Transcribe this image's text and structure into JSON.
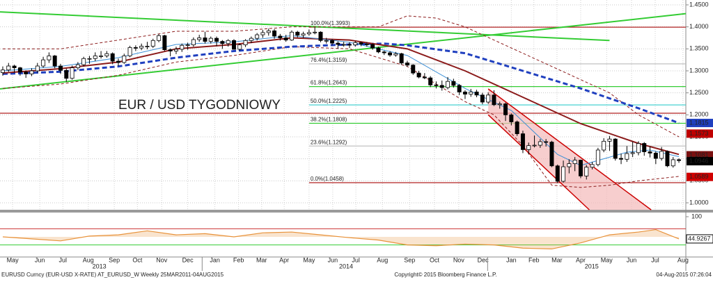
{
  "chart_data": {
    "type": "candlestick",
    "title": "EUR / USD TYGODNIOWY",
    "title_color": "#c00000",
    "xlim": [
      -0.48,
      118.2
    ],
    "ylim": [
      1.0,
      1.45
    ],
    "grid": true,
    "up_color": "#ffffff",
    "down_color": "#000000",
    "yticks": [
      {
        "value": 1.0,
        "label": "1.0000"
      },
      {
        "value": 1.05,
        "label": "1.0500"
      },
      {
        "value": 1.1,
        "label": "1.1000"
      },
      {
        "value": 1.15,
        "label": "1.1500"
      },
      {
        "value": 1.2,
        "label": "1.2000"
      },
      {
        "value": 1.25,
        "label": "1.2500"
      },
      {
        "value": 1.3,
        "label": "1.3000"
      },
      {
        "value": 1.35,
        "label": "1.3500"
      },
      {
        "value": 1.4,
        "label": "1.4000"
      },
      {
        "value": 1.45,
        "label": "1.4500"
      }
    ],
    "xticks": [
      {
        "value": 1.7,
        "label": "May"
      },
      {
        "value": 6.4,
        "label": "Jun"
      },
      {
        "value": 10.4,
        "label": "Jul"
      },
      {
        "value": 14.8,
        "label": "Aug"
      },
      {
        "value": 19.3,
        "label": "Sep"
      },
      {
        "value": 23.3,
        "label": "Oct"
      },
      {
        "value": 27.5,
        "label": "Nov"
      },
      {
        "value": 32,
        "label": "Dec"
      },
      {
        "value": 36.7,
        "label": "Jan"
      },
      {
        "value": 40.8,
        "label": "Feb"
      },
      {
        "value": 44.8,
        "label": "Mar"
      },
      {
        "value": 48.7,
        "label": "Apr"
      },
      {
        "value": 53,
        "label": "May"
      },
      {
        "value": 57.1,
        "label": "Jun"
      },
      {
        "value": 61.1,
        "label": "Jul"
      },
      {
        "value": 65.7,
        "label": "Aug"
      },
      {
        "value": 70.4,
        "label": "Sep"
      },
      {
        "value": 74.7,
        "label": "Oct"
      },
      {
        "value": 78.9,
        "label": "Nov"
      },
      {
        "value": 83.1,
        "label": "Dec"
      },
      {
        "value": 88,
        "label": "Jan"
      },
      {
        "value": 91.9,
        "label": "Feb"
      },
      {
        "value": 95.9,
        "label": "Mar"
      },
      {
        "value": 100,
        "label": "Apr"
      },
      {
        "value": 104.5,
        "label": "May"
      },
      {
        "value": 108.8,
        "label": "Jun"
      },
      {
        "value": 112.9,
        "label": "Jul"
      },
      {
        "value": 117.7,
        "label": "Aug"
      }
    ],
    "year_ticks": [
      {
        "value": 16.7,
        "label": "2013"
      },
      {
        "value": 59.4,
        "label": "2014"
      },
      {
        "value": 101.9,
        "label": "2015"
      }
    ],
    "year_separators": [
      34.5,
      83.9
    ],
    "ohlc": [
      [
        1.296,
        1.31,
        1.289,
        1.302
      ],
      [
        1.302,
        1.318,
        1.298,
        1.311
      ],
      [
        1.311,
        1.314,
        1.296,
        1.307
      ],
      [
        1.307,
        1.309,
        1.289,
        1.297
      ],
      [
        1.297,
        1.301,
        1.284,
        1.293
      ],
      [
        1.293,
        1.306,
        1.288,
        1.3
      ],
      [
        1.3,
        1.318,
        1.296,
        1.311
      ],
      [
        1.311,
        1.332,
        1.307,
        1.325
      ],
      [
        1.325,
        1.342,
        1.318,
        1.334
      ],
      [
        1.334,
        1.336,
        1.306,
        1.311
      ],
      [
        1.311,
        1.316,
        1.293,
        1.301
      ],
      [
        1.301,
        1.305,
        1.275,
        1.283
      ],
      [
        1.283,
        1.312,
        1.28,
        1.307
      ],
      [
        1.307,
        1.32,
        1.302,
        1.314
      ],
      [
        1.314,
        1.332,
        1.31,
        1.328
      ],
      [
        1.328,
        1.334,
        1.316,
        1.328
      ],
      [
        1.328,
        1.342,
        1.322,
        1.334
      ],
      [
        1.334,
        1.345,
        1.328,
        1.334
      ],
      [
        1.334,
        1.345,
        1.33,
        1.339
      ],
      [
        1.339,
        1.342,
        1.315,
        1.322
      ],
      [
        1.322,
        1.328,
        1.311,
        1.319
      ],
      [
        1.319,
        1.339,
        1.316,
        1.334
      ],
      [
        1.334,
        1.357,
        1.331,
        1.353
      ],
      [
        1.353,
        1.358,
        1.345,
        1.352
      ],
      [
        1.352,
        1.362,
        1.347,
        1.356
      ],
      [
        1.356,
        1.366,
        1.349,
        1.356
      ],
      [
        1.356,
        1.373,
        1.352,
        1.369
      ],
      [
        1.369,
        1.384,
        1.365,
        1.38
      ],
      [
        1.38,
        1.382,
        1.345,
        1.348
      ],
      [
        1.348,
        1.351,
        1.333,
        1.345
      ],
      [
        1.345,
        1.355,
        1.338,
        1.349
      ],
      [
        1.349,
        1.362,
        1.343,
        1.358
      ],
      [
        1.358,
        1.364,
        1.348,
        1.359
      ],
      [
        1.359,
        1.376,
        1.355,
        1.371
      ],
      [
        1.371,
        1.382,
        1.366,
        1.375
      ],
      [
        1.375,
        1.389,
        1.362,
        1.367
      ],
      [
        1.367,
        1.378,
        1.362,
        1.374
      ],
      [
        1.374,
        1.378,
        1.356,
        1.367
      ],
      [
        1.367,
        1.37,
        1.35,
        1.362
      ],
      [
        1.362,
        1.372,
        1.355,
        1.369
      ],
      [
        1.369,
        1.372,
        1.348,
        1.349
      ],
      [
        1.349,
        1.362,
        1.346,
        1.359
      ],
      [
        1.359,
        1.372,
        1.354,
        1.369
      ],
      [
        1.369,
        1.378,
        1.363,
        1.374
      ],
      [
        1.374,
        1.386,
        1.369,
        1.382
      ],
      [
        1.382,
        1.393,
        1.375,
        1.387
      ],
      [
        1.387,
        1.396,
        1.38,
        1.391
      ],
      [
        1.391,
        1.395,
        1.373,
        1.379
      ],
      [
        1.379,
        1.384,
        1.369,
        1.375
      ],
      [
        1.375,
        1.382,
        1.366,
        1.37
      ],
      [
        1.37,
        1.392,
        1.368,
        1.388
      ],
      [
        1.388,
        1.391,
        1.376,
        1.381
      ],
      [
        1.381,
        1.389,
        1.375,
        1.384
      ],
      [
        1.384,
        1.394,
        1.38,
        1.387
      ],
      [
        1.387,
        1.399,
        1.383,
        1.388
      ],
      [
        1.388,
        1.39,
        1.365,
        1.369
      ],
      [
        1.369,
        1.375,
        1.362,
        1.369
      ],
      [
        1.369,
        1.372,
        1.358,
        1.363
      ],
      [
        1.363,
        1.367,
        1.35,
        1.36
      ],
      [
        1.36,
        1.366,
        1.355,
        1.36
      ],
      [
        1.36,
        1.365,
        1.352,
        1.359
      ],
      [
        1.359,
        1.368,
        1.355,
        1.364
      ],
      [
        1.364,
        1.366,
        1.356,
        1.361
      ],
      [
        1.361,
        1.365,
        1.355,
        1.36
      ],
      [
        1.36,
        1.362,
        1.348,
        1.352
      ],
      [
        1.352,
        1.355,
        1.34,
        1.343
      ],
      [
        1.343,
        1.346,
        1.336,
        1.341
      ],
      [
        1.341,
        1.345,
        1.332,
        1.336
      ],
      [
        1.336,
        1.343,
        1.332,
        1.339
      ],
      [
        1.339,
        1.341,
        1.314,
        1.318
      ],
      [
        1.318,
        1.323,
        1.309,
        1.313
      ],
      [
        1.313,
        1.315,
        1.291,
        1.295
      ],
      [
        1.295,
        1.3,
        1.283,
        1.286
      ],
      [
        1.286,
        1.295,
        1.281,
        1.284
      ],
      [
        1.284,
        1.288,
        1.263,
        1.268
      ],
      [
        1.268,
        1.276,
        1.26,
        1.267
      ],
      [
        1.267,
        1.278,
        1.255,
        1.262
      ],
      [
        1.262,
        1.286,
        1.258,
        1.276
      ],
      [
        1.276,
        1.282,
        1.262,
        1.267
      ],
      [
        1.267,
        1.27,
        1.245,
        1.252
      ],
      [
        1.252,
        1.256,
        1.236,
        1.247
      ],
      [
        1.247,
        1.259,
        1.241,
        1.252
      ],
      [
        1.252,
        1.257,
        1.24,
        1.245
      ],
      [
        1.245,
        1.25,
        1.224,
        1.229
      ],
      [
        1.229,
        1.251,
        1.225,
        1.245
      ],
      [
        1.245,
        1.256,
        1.22,
        1.223
      ],
      [
        1.223,
        1.23,
        1.214,
        1.225
      ],
      [
        1.225,
        1.228,
        1.186,
        1.2
      ],
      [
        1.2,
        1.203,
        1.176,
        1.184
      ],
      [
        1.184,
        1.187,
        1.152,
        1.157
      ],
      [
        1.157,
        1.164,
        1.113,
        1.121
      ],
      [
        1.121,
        1.137,
        1.11,
        1.13
      ],
      [
        1.13,
        1.153,
        1.126,
        1.131
      ],
      [
        1.131,
        1.145,
        1.125,
        1.139
      ],
      [
        1.139,
        1.145,
        1.128,
        1.138
      ],
      [
        1.138,
        1.141,
        1.081,
        1.084
      ],
      [
        1.084,
        1.087,
        1.045,
        1.049
      ],
      [
        1.049,
        1.096,
        1.046,
        1.082
      ],
      [
        1.082,
        1.099,
        1.067,
        1.089
      ],
      [
        1.089,
        1.104,
        1.072,
        1.097
      ],
      [
        1.097,
        1.098,
        1.056,
        1.061
      ],
      [
        1.061,
        1.086,
        1.053,
        1.081
      ],
      [
        1.081,
        1.093,
        1.076,
        1.087
      ],
      [
        1.087,
        1.125,
        1.083,
        1.12
      ],
      [
        1.12,
        1.147,
        1.115,
        1.14
      ],
      [
        1.14,
        1.152,
        1.118,
        1.145
      ],
      [
        1.145,
        1.147,
        1.096,
        1.101
      ],
      [
        1.101,
        1.112,
        1.088,
        1.099
      ],
      [
        1.099,
        1.129,
        1.093,
        1.112
      ],
      [
        1.112,
        1.139,
        1.104,
        1.114
      ],
      [
        1.114,
        1.14,
        1.108,
        1.135
      ],
      [
        1.135,
        1.138,
        1.107,
        1.116
      ],
      [
        1.116,
        1.128,
        1.103,
        1.113
      ],
      [
        1.113,
        1.117,
        1.088,
        1.101
      ],
      [
        1.101,
        1.127,
        1.096,
        1.117
      ],
      [
        1.117,
        1.119,
        1.081,
        1.084
      ],
      [
        1.084,
        1.104,
        1.08,
        1.098
      ],
      [
        1.098,
        1.101,
        1.091,
        1.096
      ]
    ],
    "hlines": [
      {
        "value": 1.2037,
        "color": "#b22222"
      }
    ],
    "fib_start": 53,
    "fib_levels": [
      {
        "label": "100.0%(1.3993)",
        "value": 1.3993,
        "color": "#b22222"
      },
      {
        "label": "76.4%(1.3159)",
        "value": 1.3159,
        "color": "#bbbbbb"
      },
      {
        "label": "61.8%(1.2643)",
        "value": 1.2643,
        "color": "#33cc33"
      },
      {
        "label": "50.0%(1.2225)",
        "value": 1.2225,
        "color": "#33cccc"
      },
      {
        "label": "38.2%(1.1808)",
        "value": 1.1808,
        "color": "#33cc33"
      },
      {
        "label": "23.6%(1.1292)",
        "value": 1.1292,
        "color": "#bbbbbb"
      },
      {
        "label": "0.0%(1.0458)",
        "value": 1.0458,
        "color": "#b22222"
      }
    ],
    "channel": {
      "color": "#cc0000",
      "fill": "#f4b9b9",
      "upper": {
        "x": [
          84,
          112.2
        ],
        "values": [
          1.259,
          0.984
        ]
      },
      "lower": {
        "x": [
          84,
          101.5
        ],
        "values": [
          1.2,
          0.984
        ]
      }
    },
    "lines": [
      {
        "color": "#33cc33",
        "width": 2,
        "dash": "",
        "x": [
          -0.48,
          105
        ],
        "values": [
          1.434,
          1.369
        ]
      },
      {
        "color": "#33cc33",
        "width": 2,
        "dash": "",
        "x": [
          -0.48,
          118.2
        ],
        "values": [
          1.259,
          1.43
        ]
      },
      {
        "color": "#8b1a1a",
        "width": 1,
        "dash": "4,3",
        "x": [
          0,
          10,
          20,
          30,
          40,
          50,
          58,
          65,
          70,
          75,
          80,
          85,
          90,
          95,
          100,
          105,
          110,
          117
        ],
        "values": [
          1.35,
          1.35,
          1.37,
          1.39,
          1.39,
          1.4,
          1.4,
          1.4,
          1.425,
          1.42,
          1.4,
          1.37,
          1.34,
          1.31,
          1.28,
          1.25,
          1.2,
          1.15
        ]
      },
      {
        "color": "#8b1a1a",
        "width": 1,
        "dash": "4,3",
        "x": [
          0,
          10,
          20,
          30,
          40,
          50,
          60,
          70,
          75,
          80,
          85,
          90,
          95,
          100,
          105,
          110,
          117
        ],
        "values": [
          1.26,
          1.27,
          1.29,
          1.32,
          1.335,
          1.355,
          1.35,
          1.31,
          1.27,
          1.23,
          1.2,
          1.13,
          1.04,
          1.035,
          1.04,
          1.05,
          1.06
        ]
      },
      {
        "color": "#1f3fbf",
        "width": 3,
        "dash": "7,4",
        "x": [
          0,
          10,
          20,
          30,
          40,
          50,
          60,
          66,
          70,
          80,
          90,
          100,
          110,
          117
        ],
        "values": [
          1.293,
          1.298,
          1.31,
          1.33,
          1.345,
          1.355,
          1.36,
          1.362,
          1.358,
          1.34,
          1.3,
          1.26,
          1.215,
          1.1815
        ]
      },
      {
        "color": "#8b1a1a",
        "width": 2,
        "dash": "",
        "x": [
          0,
          10,
          20,
          30,
          40,
          50,
          60,
          70,
          80,
          90,
          100,
          110,
          117
        ],
        "values": [
          1.295,
          1.305,
          1.32,
          1.35,
          1.36,
          1.375,
          1.37,
          1.35,
          1.3,
          1.24,
          1.18,
          1.135,
          1.11
        ]
      },
      {
        "color": "#3b8fd6",
        "width": 1,
        "dash": "",
        "x": [
          0,
          10,
          20,
          30,
          40,
          50,
          60,
          70,
          80,
          88,
          92,
          96,
          100,
          104,
          108,
          112,
          117
        ],
        "values": [
          1.3,
          1.31,
          1.33,
          1.36,
          1.366,
          1.38,
          1.365,
          1.335,
          1.26,
          1.21,
          1.16,
          1.11,
          1.085,
          1.1,
          1.115,
          1.12,
          1.105
        ]
      }
    ],
    "price_tags": [
      {
        "value": 1.1815,
        "color": "#1f3fbf"
      },
      {
        "value": 1.1573,
        "color": "#c00000"
      },
      {
        "value": 1.1081,
        "color": "#7a1010"
      },
      {
        "value": 1.0946,
        "color": "#000000"
      },
      {
        "value": 1.0589,
        "color": "#d00000"
      }
    ],
    "lower_panel": {
      "ylim": [
        0,
        100
      ],
      "yticks": [
        100
      ],
      "color": "#e8923a",
      "levels": [
        {
          "value": 70,
          "color": "#cc3333"
        },
        {
          "value": 30,
          "color": "#33cc33"
        }
      ],
      "x": [
        0,
        5,
        10,
        15,
        20,
        25,
        30,
        35,
        40,
        45,
        50,
        55,
        60,
        65,
        70,
        75,
        80,
        85,
        90,
        95,
        100,
        105,
        110,
        113,
        117
      ],
      "values": [
        50,
        45,
        40,
        52,
        55,
        65,
        55,
        58,
        50,
        60,
        62,
        55,
        48,
        42,
        30,
        28,
        32,
        30,
        22,
        20,
        35,
        55,
        62,
        68,
        45
      ],
      "last": 44.9267
    }
  },
  "footer": {
    "left": "EURUSD Curncy (EUR-USD X-RATE) AT_EURUSD_W  Weekly 25MAR2011-04AUG2015",
    "center": "Copyright© 2015 Bloomberg Finance L.P.",
    "right": "04-Aug-2015 07:26:04"
  }
}
